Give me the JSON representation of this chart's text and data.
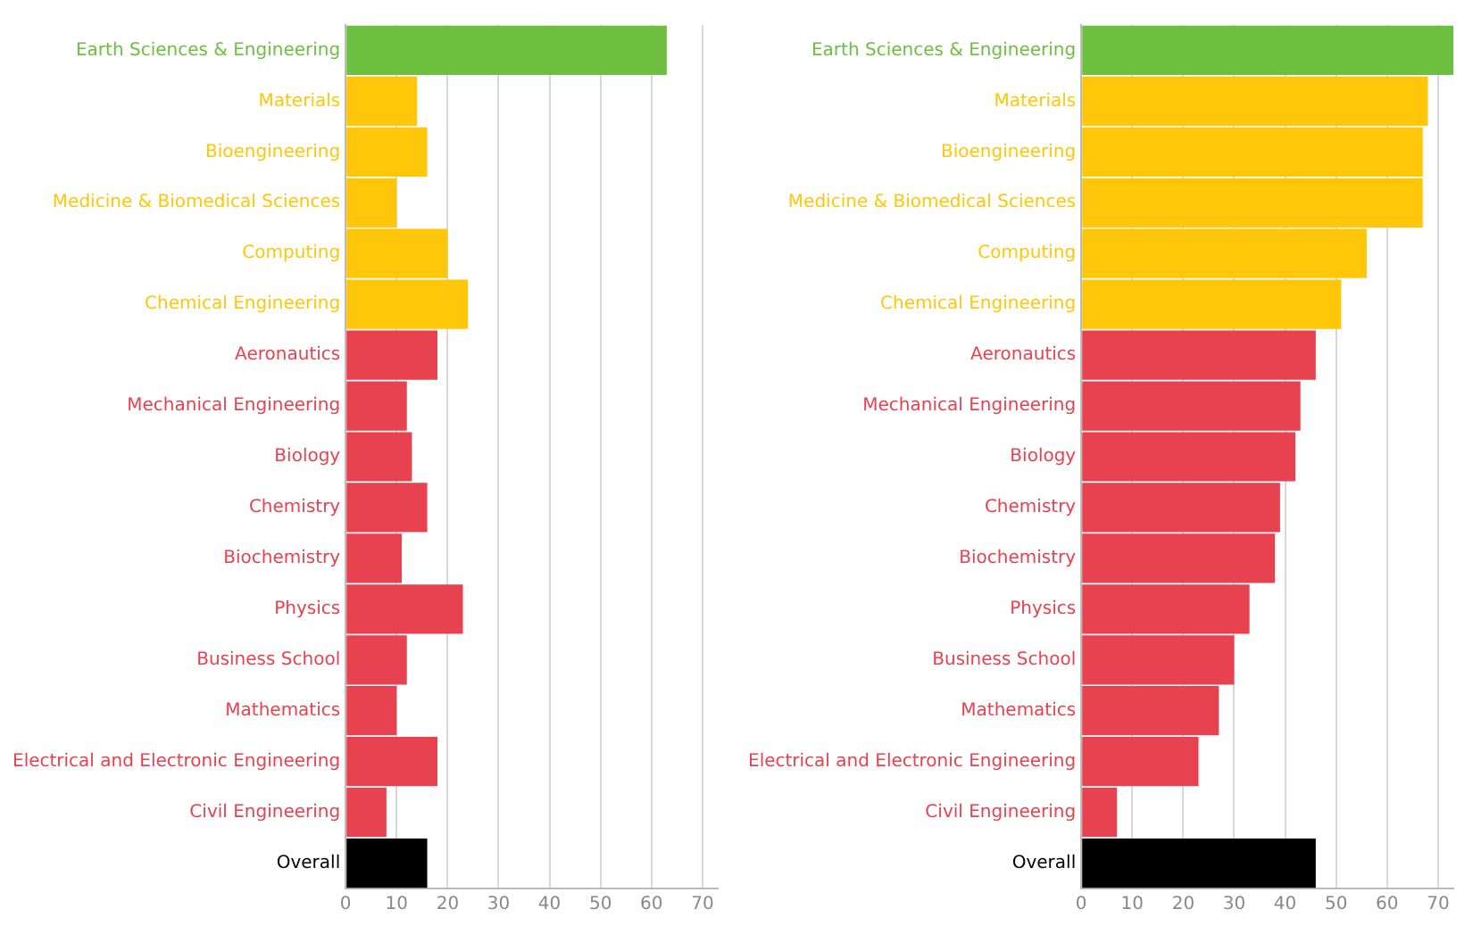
{
  "chart_data": [
    {
      "type": "bar",
      "orientation": "horizontal",
      "categories": [
        "Earth Sciences & Engineering",
        "Materials",
        "Bioengineering",
        "Medicine & Biomedical Sciences",
        "Computing",
        "Chemical Engineering",
        "Aeronautics",
        "Mechanical Engineering",
        "Biology",
        "Chemistry",
        "Biochemistry",
        "Physics",
        "Business School",
        "Mathematics",
        "Electrical and Electronic Engineering",
        "Civil Engineering",
        "Overall"
      ],
      "values": [
        63,
        14,
        16,
        10,
        20,
        24,
        18,
        12,
        13,
        16,
        11,
        23,
        12,
        10,
        18,
        8,
        16
      ],
      "colors": [
        "#6dbf3f",
        "#ffc60a",
        "#ffc60a",
        "#ffc60a",
        "#ffc60a",
        "#ffc60a",
        "#e8414f",
        "#e8414f",
        "#e8414f",
        "#e8414f",
        "#e8414f",
        "#e8414f",
        "#e8414f",
        "#e8414f",
        "#e8414f",
        "#e8414f",
        "#000000"
      ],
      "xlim": [
        0,
        73
      ],
      "xticks": [
        0,
        10,
        20,
        30,
        40,
        50,
        60,
        70
      ],
      "grid": "x"
    },
    {
      "type": "bar",
      "orientation": "horizontal",
      "categories": [
        "Earth Sciences & Engineering",
        "Materials",
        "Bioengineering",
        "Medicine & Biomedical Sciences",
        "Computing",
        "Chemical Engineering",
        "Aeronautics",
        "Mechanical Engineering",
        "Biology",
        "Chemistry",
        "Biochemistry",
        "Physics",
        "Business School",
        "Mathematics",
        "Electrical and Electronic Engineering",
        "Civil Engineering",
        "Overall"
      ],
      "values": [
        73,
        68,
        67,
        67,
        56,
        51,
        46,
        43,
        42,
        39,
        38,
        33,
        30,
        27,
        23,
        7,
        46
      ],
      "colors": [
        "#6dbf3f",
        "#ffc60a",
        "#ffc60a",
        "#ffc60a",
        "#ffc60a",
        "#ffc60a",
        "#e8414f",
        "#e8414f",
        "#e8414f",
        "#e8414f",
        "#e8414f",
        "#e8414f",
        "#e8414f",
        "#e8414f",
        "#e8414f",
        "#e8414f",
        "#000000"
      ],
      "xlim": [
        0,
        73
      ],
      "xticks": [
        0,
        10,
        20,
        30,
        40,
        50,
        60,
        70
      ],
      "grid": "x"
    }
  ]
}
